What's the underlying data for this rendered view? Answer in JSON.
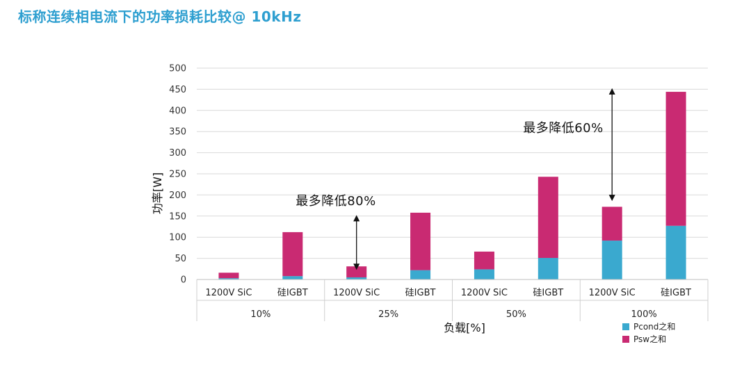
{
  "page": {
    "title": "标称连续相电流下的功率损耗比较@ 10kHz"
  },
  "chart_data": {
    "type": "bar",
    "stacked": true,
    "ylabel": "功率[W]",
    "xlabel": "负载[%]",
    "ylim": [
      0,
      500
    ],
    "yticks": [
      0,
      50,
      100,
      150,
      200,
      250,
      300,
      350,
      400,
      450,
      500
    ],
    "grid": true,
    "legend_position": "bottom-right",
    "groups": [
      "10%",
      "25%",
      "50%",
      "100%"
    ],
    "categories": [
      "1200V SiC",
      "硅IGBT",
      "1200V SiC",
      "硅IGBT",
      "1200V SiC",
      "硅IGBT",
      "1200V SiC",
      "硅IGBT"
    ],
    "series": [
      {
        "name": "Pcond之和",
        "color": "#3aa9cf",
        "values": [
          3,
          8,
          5,
          22,
          24,
          51,
          92,
          127
        ]
      },
      {
        "name": "Psw之和",
        "color": "#c92a72",
        "values": [
          13,
          104,
          26,
          136,
          42,
          192,
          80,
          317
        ]
      }
    ],
    "annotations": [
      {
        "text": "最多降低80%",
        "from": 30,
        "to": 145
      },
      {
        "text": "最多降低60%",
        "from": 193,
        "to": 445
      }
    ]
  }
}
